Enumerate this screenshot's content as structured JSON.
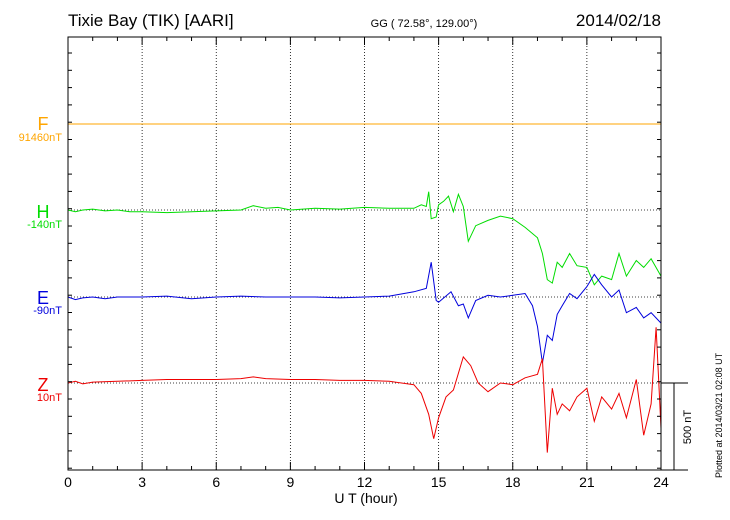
{
  "header": {
    "station": "Tixie Bay (TIK)  [AARI]",
    "coords": "GG ( 72.58°, 129.00°)",
    "date": "2014/02/18"
  },
  "side_note": "Plotted at 2014/03/21 02:08 UT",
  "chart_data": {
    "type": "line",
    "title": "Tixie Bay (TIK)  [AARI]",
    "subtitle": "GG ( 72.58°, 129.00°)",
    "date": "2014/02/18",
    "xlabel": "U T (hour)",
    "xlim": [
      0,
      24
    ],
    "xticks": [
      0,
      3,
      6,
      9,
      12,
      15,
      18,
      21,
      24
    ],
    "ylabel": "",
    "scale_bar": {
      "label": "500 nT",
      "value_nT": 500
    },
    "grid": true,
    "series": [
      {
        "name": "F",
        "baseline_label": "91460nT",
        "color": "#FFA500",
        "points": [
          [
            0,
            0
          ],
          [
            24,
            0
          ]
        ]
      },
      {
        "name": "H",
        "baseline_label": "-140nT",
        "color": "#00DD00",
        "points": [
          [
            0,
            0
          ],
          [
            0.3,
            -10
          ],
          [
            0.6,
            0
          ],
          [
            1,
            5
          ],
          [
            1.5,
            -5
          ],
          [
            2,
            0
          ],
          [
            2.5,
            -10
          ],
          [
            3,
            -10
          ],
          [
            4,
            -15
          ],
          [
            5,
            -10
          ],
          [
            6,
            -5
          ],
          [
            7,
            0
          ],
          [
            7.5,
            25
          ],
          [
            8,
            10
          ],
          [
            8.5,
            15
          ],
          [
            9,
            0
          ],
          [
            10,
            10
          ],
          [
            11,
            5
          ],
          [
            12,
            15
          ],
          [
            13,
            10
          ],
          [
            14,
            10
          ],
          [
            14.3,
            30
          ],
          [
            14.5,
            20
          ],
          [
            14.6,
            105
          ],
          [
            14.7,
            -50
          ],
          [
            14.9,
            -40
          ],
          [
            15,
            30
          ],
          [
            15.2,
            50
          ],
          [
            15.4,
            80
          ],
          [
            15.6,
            -10
          ],
          [
            15.8,
            90
          ],
          [
            16,
            20
          ],
          [
            16.2,
            -180
          ],
          [
            16.5,
            -90
          ],
          [
            17,
            -60
          ],
          [
            17.5,
            -35
          ],
          [
            18,
            -50
          ],
          [
            18.5,
            -100
          ],
          [
            19,
            -160
          ],
          [
            19.2,
            -250
          ],
          [
            19.4,
            -400
          ],
          [
            19.6,
            -420
          ],
          [
            19.8,
            -300
          ],
          [
            20,
            -330
          ],
          [
            20.3,
            -250
          ],
          [
            20.6,
            -320
          ],
          [
            21,
            -330
          ],
          [
            21.3,
            -430
          ],
          [
            21.6,
            -380
          ],
          [
            22,
            -400
          ],
          [
            22.3,
            -250
          ],
          [
            22.6,
            -380
          ],
          [
            23,
            -290
          ],
          [
            23.3,
            -330
          ],
          [
            23.6,
            -280
          ],
          [
            24,
            -380
          ]
        ]
      },
      {
        "name": "E",
        "baseline_label": "-90nT",
        "color": "#0000DD",
        "points": [
          [
            0,
            0
          ],
          [
            0.3,
            -15
          ],
          [
            0.6,
            -5
          ],
          [
            1,
            0
          ],
          [
            1.5,
            -10
          ],
          [
            2,
            0
          ],
          [
            3,
            0
          ],
          [
            4,
            5
          ],
          [
            5,
            -10
          ],
          [
            6,
            0
          ],
          [
            7,
            5
          ],
          [
            8,
            0
          ],
          [
            9,
            0
          ],
          [
            10,
            0
          ],
          [
            11,
            -5
          ],
          [
            12,
            0
          ],
          [
            13,
            5
          ],
          [
            14,
            30
          ],
          [
            14.5,
            50
          ],
          [
            14.7,
            200
          ],
          [
            14.9,
            -20
          ],
          [
            15,
            -30
          ],
          [
            15.5,
            30
          ],
          [
            15.8,
            -50
          ],
          [
            16,
            -40
          ],
          [
            16.2,
            -120
          ],
          [
            16.5,
            -20
          ],
          [
            17,
            10
          ],
          [
            17.5,
            0
          ],
          [
            18,
            10
          ],
          [
            18.5,
            20
          ],
          [
            18.8,
            -50
          ],
          [
            19,
            -170
          ],
          [
            19.2,
            -380
          ],
          [
            19.4,
            -220
          ],
          [
            19.6,
            -250
          ],
          [
            19.8,
            -100
          ],
          [
            20,
            -50
          ],
          [
            20.3,
            20
          ],
          [
            20.6,
            -10
          ],
          [
            21,
            60
          ],
          [
            21.3,
            130
          ],
          [
            21.6,
            70
          ],
          [
            22,
            0
          ],
          [
            22.3,
            40
          ],
          [
            22.6,
            -90
          ],
          [
            23,
            -60
          ],
          [
            23.3,
            -120
          ],
          [
            23.6,
            -90
          ],
          [
            24,
            -150
          ]
        ]
      },
      {
        "name": "Z",
        "baseline_label": "10nT",
        "color": "#EE0000",
        "points": [
          [
            0,
            0
          ],
          [
            0.3,
            10
          ],
          [
            0.6,
            -5
          ],
          [
            1,
            5
          ],
          [
            2,
            10
          ],
          [
            3,
            15
          ],
          [
            4,
            20
          ],
          [
            5,
            20
          ],
          [
            6,
            20
          ],
          [
            7,
            25
          ],
          [
            7.5,
            35
          ],
          [
            8,
            25
          ],
          [
            9,
            20
          ],
          [
            10,
            20
          ],
          [
            11,
            15
          ],
          [
            12,
            15
          ],
          [
            13,
            10
          ],
          [
            14,
            -10
          ],
          [
            14.3,
            -60
          ],
          [
            14.6,
            -180
          ],
          [
            14.8,
            -320
          ],
          [
            15,
            -200
          ],
          [
            15.3,
            -80
          ],
          [
            15.6,
            -40
          ],
          [
            16,
            150
          ],
          [
            16.3,
            100
          ],
          [
            16.6,
            0
          ],
          [
            17,
            -50
          ],
          [
            17.5,
            0
          ],
          [
            18,
            -10
          ],
          [
            18.5,
            30
          ],
          [
            19,
            50
          ],
          [
            19.2,
            140
          ],
          [
            19.4,
            -400
          ],
          [
            19.6,
            -30
          ],
          [
            19.8,
            -180
          ],
          [
            20,
            -120
          ],
          [
            20.3,
            -160
          ],
          [
            20.6,
            -80
          ],
          [
            21,
            -30
          ],
          [
            21.3,
            -220
          ],
          [
            21.6,
            -80
          ],
          [
            22,
            -150
          ],
          [
            22.3,
            -60
          ],
          [
            22.6,
            -200
          ],
          [
            23,
            20
          ],
          [
            23.3,
            -300
          ],
          [
            23.6,
            -120
          ],
          [
            23.8,
            320
          ],
          [
            24,
            -260
          ]
        ]
      }
    ]
  }
}
